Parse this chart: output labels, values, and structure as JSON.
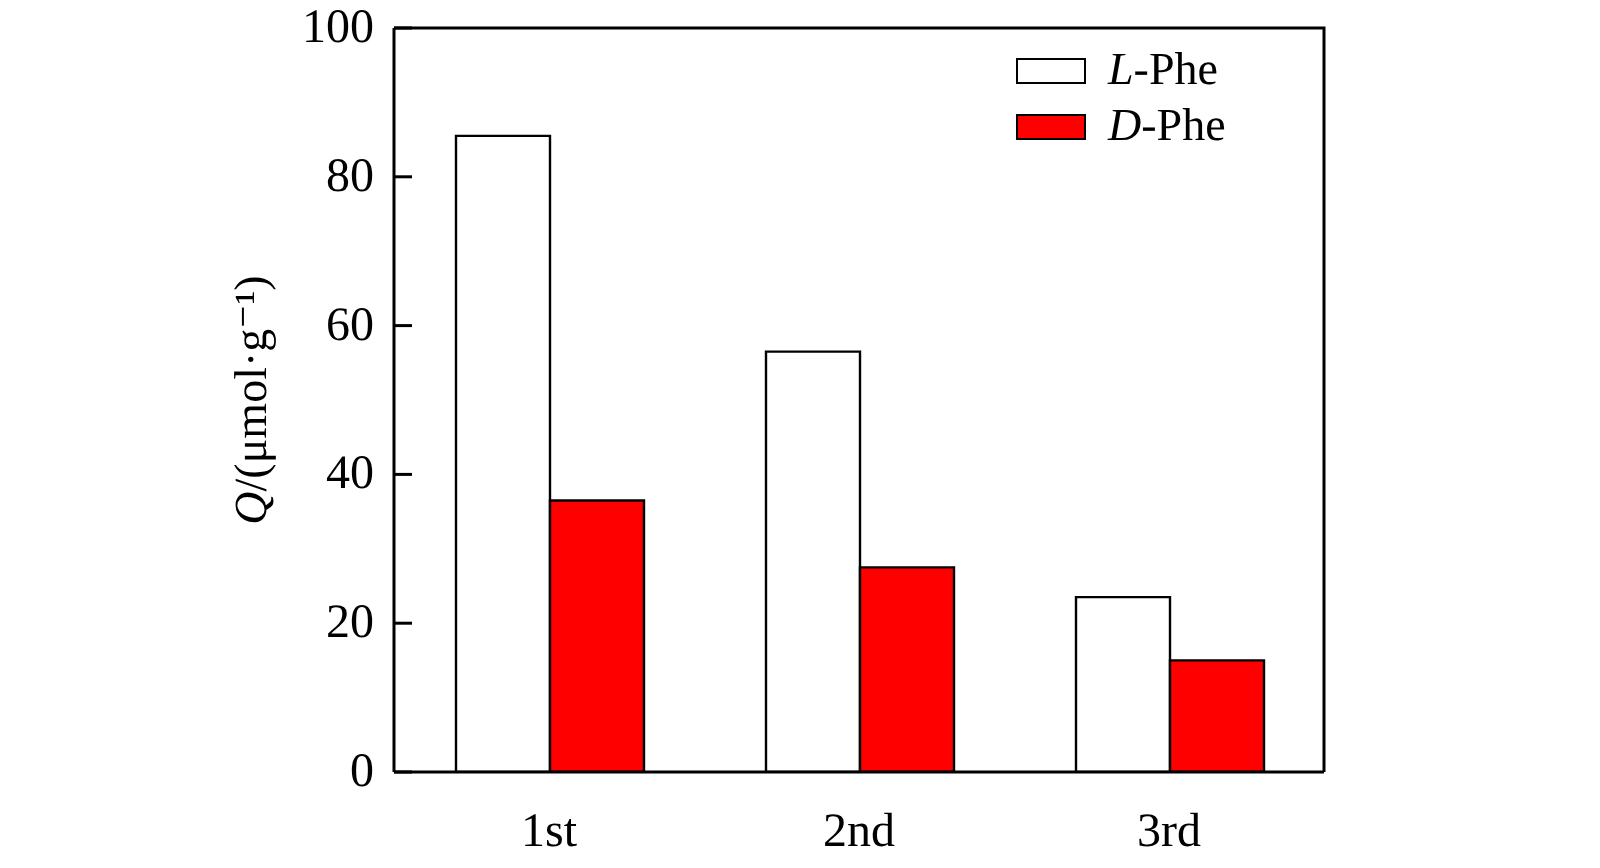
{
  "chart_data": {
    "type": "bar",
    "ylabel": "Q/(μmol·g⁻¹)",
    "categories": [
      "1st",
      "2nd",
      "3rd"
    ],
    "series": [
      {
        "name": "L-Phe",
        "color": "#ffffff",
        "values": [
          85.5,
          56.5,
          23.5
        ]
      },
      {
        "name": "D-Phe",
        "color": "#ff0000",
        "values": [
          36.5,
          27.5,
          15
        ]
      }
    ],
    "ylim": [
      0,
      100
    ],
    "yticks": [
      0,
      20,
      40,
      60,
      80,
      100
    ],
    "legend": "top right"
  }
}
